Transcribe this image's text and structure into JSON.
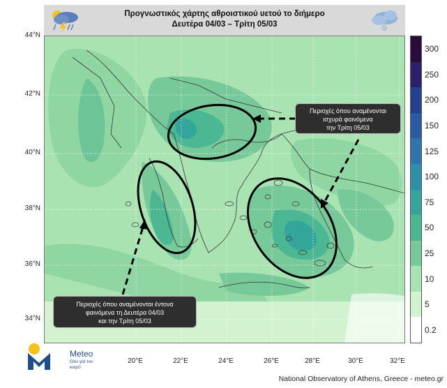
{
  "header": {
    "title": "Προγνωστικός χάρτης αθροιστικού υετού το διήμερο",
    "subtitle": "Δευτέρα 04/03 – Τρίτη 05/03"
  },
  "header_icons": {
    "left": "storm-cloud-icon",
    "right": "cloud-icon"
  },
  "map": {
    "lat_labels": [
      "44°N",
      "42°N",
      "40°N",
      "38°N",
      "36°N",
      "34°N"
    ],
    "lon_labels": [
      "20°E",
      "22°E",
      "24°E",
      "26°E",
      "28°E",
      "30°E",
      "32°E"
    ],
    "lat_range": [
      33.5,
      44
    ],
    "lon_range": [
      18.5,
      32.5
    ],
    "base_color": "#a9e3b2"
  },
  "colorbar": {
    "labels": [
      "300",
      "250",
      "200",
      "150",
      "125",
      "100",
      "75",
      "50",
      "25",
      "10",
      "5",
      "0.2"
    ],
    "colors": [
      "#2b0a3d",
      "#2c1f6b",
      "#25408f",
      "#2a5aa3",
      "#2f74ad",
      "#2f8fa8",
      "#33a59a",
      "#4cb893",
      "#78c99a",
      "#a9e3b2",
      "#d3f2cf",
      "#ffffff"
    ]
  },
  "callouts": {
    "top_right": {
      "line1": "Περιοχές όπου αναμένονται",
      "line2": "ισχυρά φαινόμενα",
      "line3": "την Τρίτη 05/03"
    },
    "bottom_left": {
      "line1": "Περιοχές όπου αναμένονται έντονα",
      "line2": "φαινόμενα τη Δευτέρα 04/03",
      "line3": "και την Τρίτη 05/03"
    }
  },
  "logo": {
    "name": "Meteo",
    "tagline": "Όλα για τον καιρό"
  },
  "footer": {
    "credit": "National Observatory of Athens, Greece - meteo.gr"
  }
}
